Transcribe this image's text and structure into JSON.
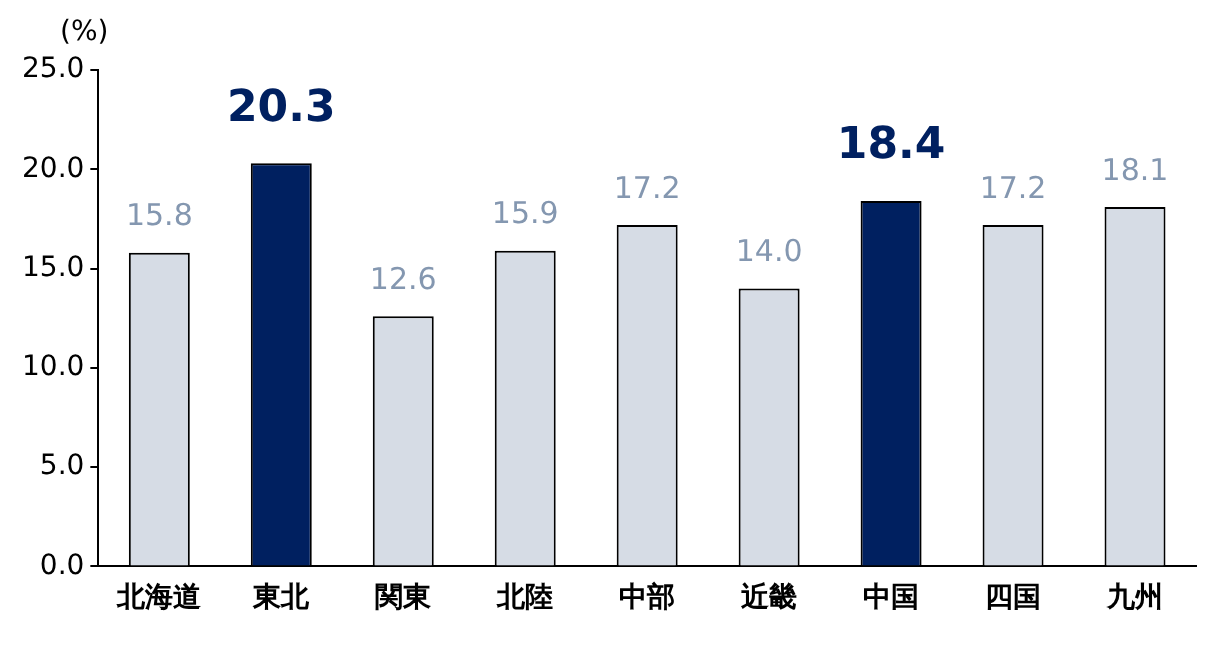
{
  "chart_data": {
    "type": "bar",
    "ylabel": "(%)",
    "categories": [
      "北海道",
      "東北",
      "関東",
      "北陸",
      "中部",
      "近畿",
      "中国",
      "四国",
      "九州"
    ],
    "values": [
      15.8,
      20.3,
      12.6,
      15.9,
      17.2,
      14.0,
      18.4,
      17.2,
      18.1
    ],
    "colors": [
      "#d6dce5",
      "#002060",
      "#d6dce5",
      "#d6dce5",
      "#d6dce5",
      "#d6dce5",
      "#002060",
      "#d6dce5",
      "#d6dce5"
    ],
    "ylim": [
      0,
      25
    ],
    "yticks": [
      {
        "value": 0,
        "label": "0.0"
      },
      {
        "value": 5,
        "label": "5.0"
      },
      {
        "value": 10,
        "label": "10.0"
      },
      {
        "value": 15,
        "label": "15.0"
      },
      {
        "value": 20,
        "label": "20.0"
      },
      {
        "value": 25,
        "label": "25.0"
      }
    ],
    "value_labels": [
      "15.8",
      "20.3",
      "12.6",
      "15.9",
      "17.2",
      "14.0",
      "18.4",
      "17.2",
      "18.1"
    ],
    "grid": false,
    "legend": false
  }
}
